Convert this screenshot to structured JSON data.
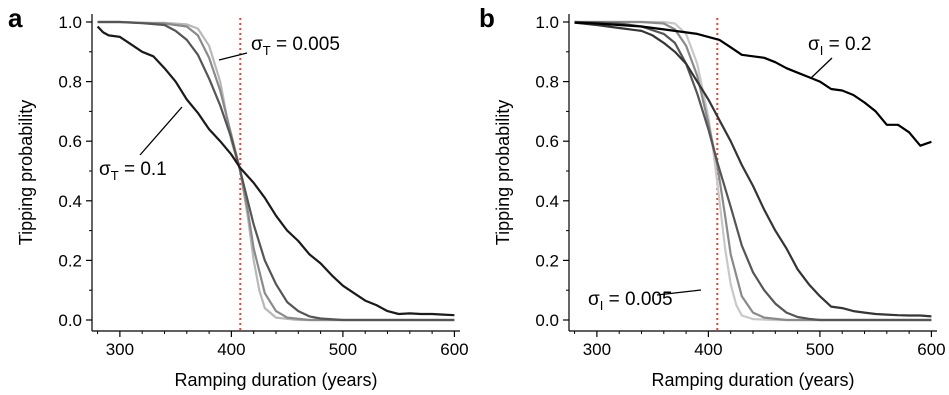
{
  "chart_data": [
    {
      "panel": "a",
      "type": "line",
      "xlabel": "Ramping duration (years)",
      "ylabel": "Tipping probability",
      "xlim": [
        275,
        605
      ],
      "ylim": [
        0.0,
        1.03
      ],
      "xticks": [
        "300",
        "400",
        "500",
        "600"
      ],
      "yticks": [
        "0.0",
        "0.2",
        "0.4",
        "0.6",
        "0.8",
        "1.0"
      ],
      "vline": {
        "x": 408,
        "color": "#e8442e",
        "style": "dotted"
      },
      "annotations": [
        {
          "text": "σT = 0.005",
          "sigma": "σ",
          "sub": "T",
          "rest": " = 0.005"
        },
        {
          "text": "σT = 0.1",
          "sigma": "σ",
          "sub": "T",
          "rest": " = 0.1"
        }
      ],
      "series": [
        {
          "color": "#b8b8b8",
          "points": [
            [
              280,
              1.0
            ],
            [
              300,
              1.0
            ],
            [
              320,
              0.997
            ],
            [
              340,
              0.997
            ],
            [
              360,
              0.992
            ],
            [
              370,
              0.978
            ],
            [
              380,
              0.92
            ],
            [
              390,
              0.8
            ],
            [
              400,
              0.6
            ],
            [
              408,
              0.5
            ],
            [
              415,
              0.34
            ],
            [
              420,
              0.2
            ],
            [
              425,
              0.1
            ],
            [
              430,
              0.04
            ],
            [
              440,
              0.008
            ],
            [
              460,
              0.0
            ],
            [
              500,
              0.0
            ],
            [
              600,
              0.0
            ]
          ]
        },
        {
          "color": "#8a8a8a",
          "points": [
            [
              280,
              1.0
            ],
            [
              300,
              1.0
            ],
            [
              320,
              0.997
            ],
            [
              340,
              0.995
            ],
            [
              360,
              0.985
            ],
            [
              370,
              0.955
            ],
            [
              380,
              0.88
            ],
            [
              390,
              0.77
            ],
            [
              400,
              0.62
            ],
            [
              408,
              0.5
            ],
            [
              415,
              0.36
            ],
            [
              420,
              0.24
            ],
            [
              430,
              0.09
            ],
            [
              440,
              0.03
            ],
            [
              450,
              0.008
            ],
            [
              470,
              0.0
            ],
            [
              500,
              0.0
            ],
            [
              600,
              0.0
            ]
          ]
        },
        {
          "color": "#555555",
          "points": [
            [
              280,
              1.0
            ],
            [
              300,
              1.0
            ],
            [
              320,
              0.996
            ],
            [
              340,
              0.99
            ],
            [
              350,
              0.97
            ],
            [
              360,
              0.94
            ],
            [
              370,
              0.89
            ],
            [
              380,
              0.81
            ],
            [
              390,
              0.72
            ],
            [
              400,
              0.61
            ],
            [
              408,
              0.5
            ],
            [
              420,
              0.32
            ],
            [
              430,
              0.2
            ],
            [
              440,
              0.12
            ],
            [
              450,
              0.06
            ],
            [
              460,
              0.03
            ],
            [
              470,
              0.012
            ],
            [
              480,
              0.005
            ],
            [
              500,
              0.0
            ],
            [
              600,
              0.0
            ]
          ]
        },
        {
          "color": "#1a1a1a",
          "points": [
            [
              280,
              0.985
            ],
            [
              285,
              0.965
            ],
            [
              290,
              0.955
            ],
            [
              300,
              0.95
            ],
            [
              310,
              0.925
            ],
            [
              320,
              0.9
            ],
            [
              330,
              0.885
            ],
            [
              340,
              0.845
            ],
            [
              350,
              0.8
            ],
            [
              360,
              0.74
            ],
            [
              370,
              0.695
            ],
            [
              380,
              0.64
            ],
            [
              390,
              0.6
            ],
            [
              400,
              0.555
            ],
            [
              408,
              0.51
            ],
            [
              420,
              0.46
            ],
            [
              430,
              0.41
            ],
            [
              440,
              0.35
            ],
            [
              450,
              0.3
            ],
            [
              460,
              0.265
            ],
            [
              470,
              0.22
            ],
            [
              480,
              0.19
            ],
            [
              490,
              0.15
            ],
            [
              500,
              0.115
            ],
            [
              510,
              0.09
            ],
            [
              520,
              0.065
            ],
            [
              530,
              0.05
            ],
            [
              540,
              0.03
            ],
            [
              550,
              0.02
            ],
            [
              560,
              0.022
            ],
            [
              570,
              0.02
            ],
            [
              580,
              0.02
            ],
            [
              590,
              0.018
            ],
            [
              600,
              0.016
            ]
          ]
        }
      ]
    },
    {
      "panel": "b",
      "type": "line",
      "xlabel": "Ramping duration (years)",
      "ylabel": "Tipping probability",
      "xlim": [
        275,
        605
      ],
      "ylim": [
        0.0,
        1.03
      ],
      "xticks": [
        "300",
        "400",
        "500",
        "600"
      ],
      "yticks": [
        "0.0",
        "0.2",
        "0.4",
        "0.6",
        "0.8",
        "1.0"
      ],
      "vline": {
        "x": 408,
        "color": "#e8442e",
        "style": "dotted"
      },
      "annotations": [
        {
          "text": "σI = 0.2",
          "sigma": "σ",
          "sub": "I",
          "rest": " = 0.2"
        },
        {
          "text": "σI = 0.005",
          "sigma": "σ",
          "sub": "I",
          "rest": " = 0.005"
        }
      ],
      "series": [
        {
          "color": "#c8c8c8",
          "points": [
            [
              280,
              1.0
            ],
            [
              300,
              1.0
            ],
            [
              320,
              1.0
            ],
            [
              340,
              1.0
            ],
            [
              360,
              1.0
            ],
            [
              370,
              0.995
            ],
            [
              380,
              0.96
            ],
            [
              390,
              0.86
            ],
            [
              400,
              0.68
            ],
            [
              405,
              0.55
            ],
            [
              410,
              0.4
            ],
            [
              415,
              0.24
            ],
            [
              420,
              0.12
            ],
            [
              425,
              0.05
            ],
            [
              430,
              0.015
            ],
            [
              440,
              0.003
            ],
            [
              460,
              0.0
            ],
            [
              600,
              0.0
            ]
          ]
        },
        {
          "color": "#8a8a8a",
          "points": [
            [
              280,
              1.0
            ],
            [
              300,
              1.0
            ],
            [
              320,
              1.0
            ],
            [
              340,
              1.0
            ],
            [
              360,
              0.995
            ],
            [
              370,
              0.975
            ],
            [
              380,
              0.92
            ],
            [
              390,
              0.82
            ],
            [
              400,
              0.66
            ],
            [
              408,
              0.52
            ],
            [
              415,
              0.35
            ],
            [
              420,
              0.22
            ],
            [
              430,
              0.08
            ],
            [
              440,
              0.025
            ],
            [
              450,
              0.008
            ],
            [
              470,
              0.0
            ],
            [
              600,
              0.0
            ]
          ]
        },
        {
          "color": "#555555",
          "points": [
            [
              280,
              1.0
            ],
            [
              300,
              0.998
            ],
            [
              320,
              0.995
            ],
            [
              340,
              0.985
            ],
            [
              360,
              0.96
            ],
            [
              370,
              0.93
            ],
            [
              380,
              0.86
            ],
            [
              390,
              0.76
            ],
            [
              400,
              0.64
            ],
            [
              408,
              0.53
            ],
            [
              420,
              0.38
            ],
            [
              430,
              0.25
            ],
            [
              440,
              0.16
            ],
            [
              450,
              0.1
            ],
            [
              460,
              0.055
            ],
            [
              470,
              0.025
            ],
            [
              480,
              0.01
            ],
            [
              490,
              0.004
            ],
            [
              500,
              0.0
            ],
            [
              600,
              0.0
            ]
          ]
        },
        {
          "color": "#353535",
          "points": [
            [
              280,
              0.998
            ],
            [
              300,
              0.99
            ],
            [
              320,
              0.98
            ],
            [
              340,
              0.97
            ],
            [
              350,
              0.955
            ],
            [
              360,
              0.93
            ],
            [
              370,
              0.9
            ],
            [
              380,
              0.86
            ],
            [
              390,
              0.8
            ],
            [
              400,
              0.74
            ],
            [
              410,
              0.67
            ],
            [
              420,
              0.6
            ],
            [
              430,
              0.52
            ],
            [
              440,
              0.45
            ],
            [
              450,
              0.37
            ],
            [
              460,
              0.3
            ],
            [
              470,
              0.24
            ],
            [
              480,
              0.17
            ],
            [
              490,
              0.12
            ],
            [
              500,
              0.08
            ],
            [
              510,
              0.045
            ],
            [
              520,
              0.04
            ],
            [
              530,
              0.03
            ],
            [
              540,
              0.025
            ],
            [
              550,
              0.02
            ],
            [
              560,
              0.018
            ],
            [
              570,
              0.016
            ],
            [
              580,
              0.015
            ],
            [
              590,
              0.015
            ],
            [
              600,
              0.012
            ]
          ]
        },
        {
          "color": "#000000",
          "points": [
            [
              280,
              0.998
            ],
            [
              300,
              0.995
            ],
            [
              320,
              0.99
            ],
            [
              340,
              0.985
            ],
            [
              360,
              0.975
            ],
            [
              370,
              0.97
            ],
            [
              380,
              0.965
            ],
            [
              390,
              0.96
            ],
            [
              400,
              0.95
            ],
            [
              410,
              0.94
            ],
            [
              420,
              0.915
            ],
            [
              430,
              0.89
            ],
            [
              440,
              0.885
            ],
            [
              450,
              0.88
            ],
            [
              460,
              0.865
            ],
            [
              470,
              0.845
            ],
            [
              480,
              0.83
            ],
            [
              490,
              0.815
            ],
            [
              500,
              0.8
            ],
            [
              510,
              0.775
            ],
            [
              520,
              0.77
            ],
            [
              530,
              0.755
            ],
            [
              540,
              0.73
            ],
            [
              550,
              0.7
            ],
            [
              560,
              0.655
            ],
            [
              570,
              0.655
            ],
            [
              580,
              0.63
            ],
            [
              590,
              0.585
            ],
            [
              600,
              0.598
            ]
          ]
        }
      ]
    }
  ]
}
